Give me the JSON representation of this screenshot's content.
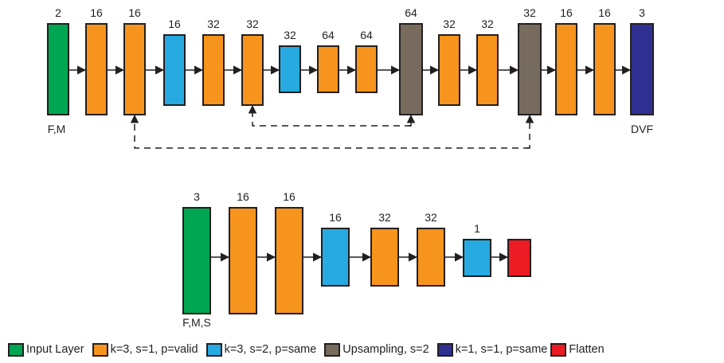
{
  "colors": {
    "input": "#00a651",
    "conv_valid": "#f7941d",
    "conv_stride": "#27aae1",
    "upsampling": "#776b5d",
    "output_conv": "#2e3192",
    "flatten": "#ed1c24",
    "stroke": "#231f20"
  },
  "top_network": {
    "input_label": "F,M",
    "output_label": "DVF",
    "blocks": [
      {
        "channels": "2",
        "type": "input"
      },
      {
        "channels": "16",
        "type": "conv_valid"
      },
      {
        "channels": "16",
        "type": "conv_valid"
      },
      {
        "channels": "16",
        "type": "conv_stride"
      },
      {
        "channels": "32",
        "type": "conv_valid"
      },
      {
        "channels": "32",
        "type": "conv_valid"
      },
      {
        "channels": "32",
        "type": "conv_stride"
      },
      {
        "channels": "64",
        "type": "conv_valid"
      },
      {
        "channels": "64",
        "type": "conv_valid"
      },
      {
        "channels": "64",
        "type": "upsampling"
      },
      {
        "channels": "32",
        "type": "conv_valid"
      },
      {
        "channels": "32",
        "type": "conv_valid"
      },
      {
        "channels": "32",
        "type": "upsampling"
      },
      {
        "channels": "16",
        "type": "conv_valid"
      },
      {
        "channels": "16",
        "type": "conv_valid"
      },
      {
        "channels": "3",
        "type": "output_conv"
      }
    ],
    "skip_connections": [
      {
        "from": 5,
        "to": 9
      },
      {
        "from": 2,
        "to": 12
      }
    ]
  },
  "bottom_network": {
    "input_label": "F,M,S",
    "blocks": [
      {
        "channels": "3",
        "type": "input"
      },
      {
        "channels": "16",
        "type": "conv_valid"
      },
      {
        "channels": "16",
        "type": "conv_valid"
      },
      {
        "channels": "16",
        "type": "conv_stride"
      },
      {
        "channels": "32",
        "type": "conv_valid"
      },
      {
        "channels": "32",
        "type": "conv_valid"
      },
      {
        "channels": "1",
        "type": "conv_stride"
      },
      {
        "channels": "",
        "type": "flatten"
      }
    ]
  },
  "legend": [
    {
      "label": "Input Layer",
      "type": "input"
    },
    {
      "label": "k=3, s=1, p=valid",
      "type": "conv_valid"
    },
    {
      "label": "k=3, s=2, p=same",
      "type": "conv_stride"
    },
    {
      "label": "Upsampling, s=2",
      "type": "upsampling"
    },
    {
      "label": "k=1, s=1, p=same",
      "type": "output_conv"
    },
    {
      "label": "Flatten",
      "type": "flatten"
    }
  ]
}
